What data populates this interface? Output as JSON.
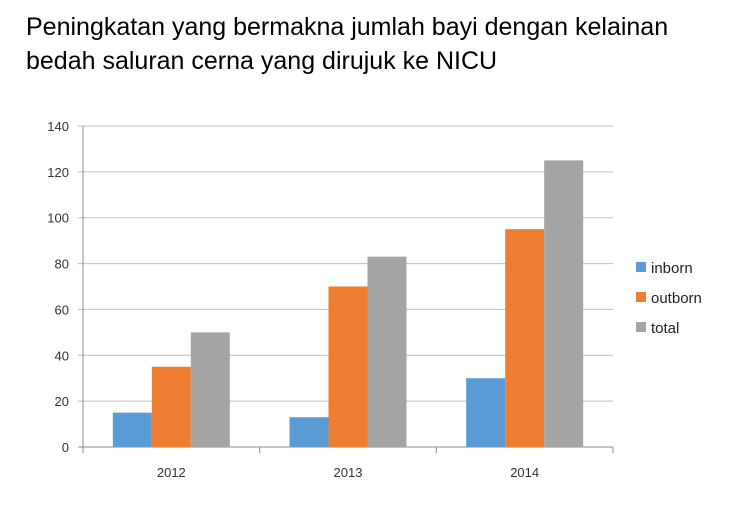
{
  "chart_data": {
    "type": "bar",
    "title_lines": [
      "Peningkatan yang bermakna jumlah bayi dengan kelainan",
      "bedah saluran cerna yang dirujuk ke NICU"
    ],
    "categories": [
      "2012",
      "2013",
      "2014"
    ],
    "series": [
      {
        "name": "inborn",
        "color": "#5B9BD5",
        "values": [
          15,
          13,
          30
        ]
      },
      {
        "name": "outborn",
        "color": "#ED7D31",
        "values": [
          35,
          70,
          95
        ]
      },
      {
        "name": "total",
        "color": "#A5A5A5",
        "values": [
          50,
          83,
          125
        ]
      }
    ],
    "ylim": [
      0,
      140
    ],
    "yticks": [
      0,
      20,
      40,
      60,
      80,
      100,
      120,
      140
    ],
    "grid": true,
    "legend": "right"
  }
}
